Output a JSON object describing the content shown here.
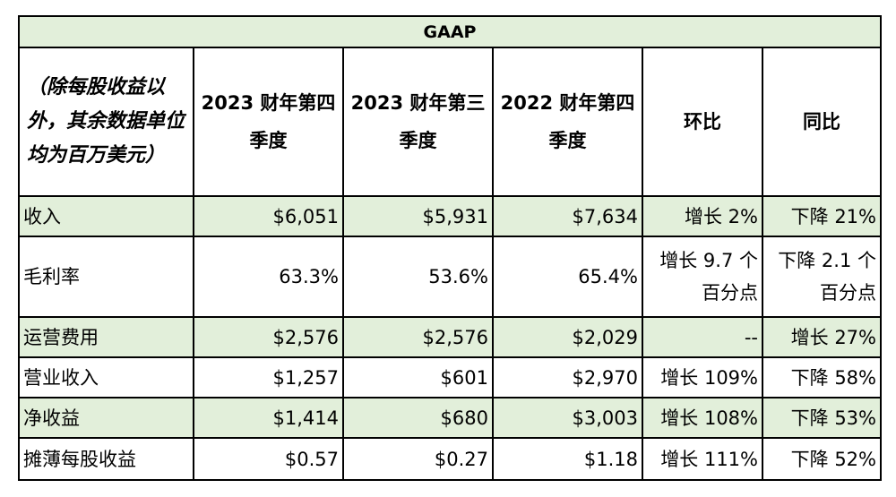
{
  "banner": "GAAP",
  "corner_note": "（除每股收益以外，其余数据单位均为百万美元）",
  "columns": [
    "2023 财年第四季度",
    "2023 财年第三季度",
    "2022 财年第四季度",
    "环比",
    "同比"
  ],
  "rows": [
    {
      "label": "收入",
      "q4_2023": "$6,051",
      "q3_2023": "$5,931",
      "q4_2022": "$7,634",
      "qoq": "增长 2%",
      "yoy": "下降 21%"
    },
    {
      "label": "毛利率",
      "q4_2023": "63.3%",
      "q3_2023": "53.6%",
      "q4_2022": "65.4%",
      "qoq": "增长 9.7 个百分点",
      "yoy": "下降 2.1 个百分点"
    },
    {
      "label": "运营费用",
      "q4_2023": "$2,576",
      "q3_2023": "$2,576",
      "q4_2022": "$2,029",
      "qoq": "--",
      "yoy": "增长 27%"
    },
    {
      "label": "营业收入",
      "q4_2023": "$1,257",
      "q3_2023": "$601",
      "q4_2022": "$2,970",
      "qoq": "增长 109%",
      "yoy": "下降 58%"
    },
    {
      "label": "净收益",
      "q4_2023": "$1,414",
      "q3_2023": "$680",
      "q4_2022": "$3,003",
      "qoq": "增长 108%",
      "yoy": "下降 53%"
    },
    {
      "label": "摊薄每股收益",
      "q4_2023": "$0.57",
      "q3_2023": "$0.27",
      "q4_2022": "$1.18",
      "qoq": "增长 111%",
      "yoy": "下降 52%"
    }
  ],
  "colors": {
    "shade": "#e2efda",
    "border": "#000000"
  }
}
